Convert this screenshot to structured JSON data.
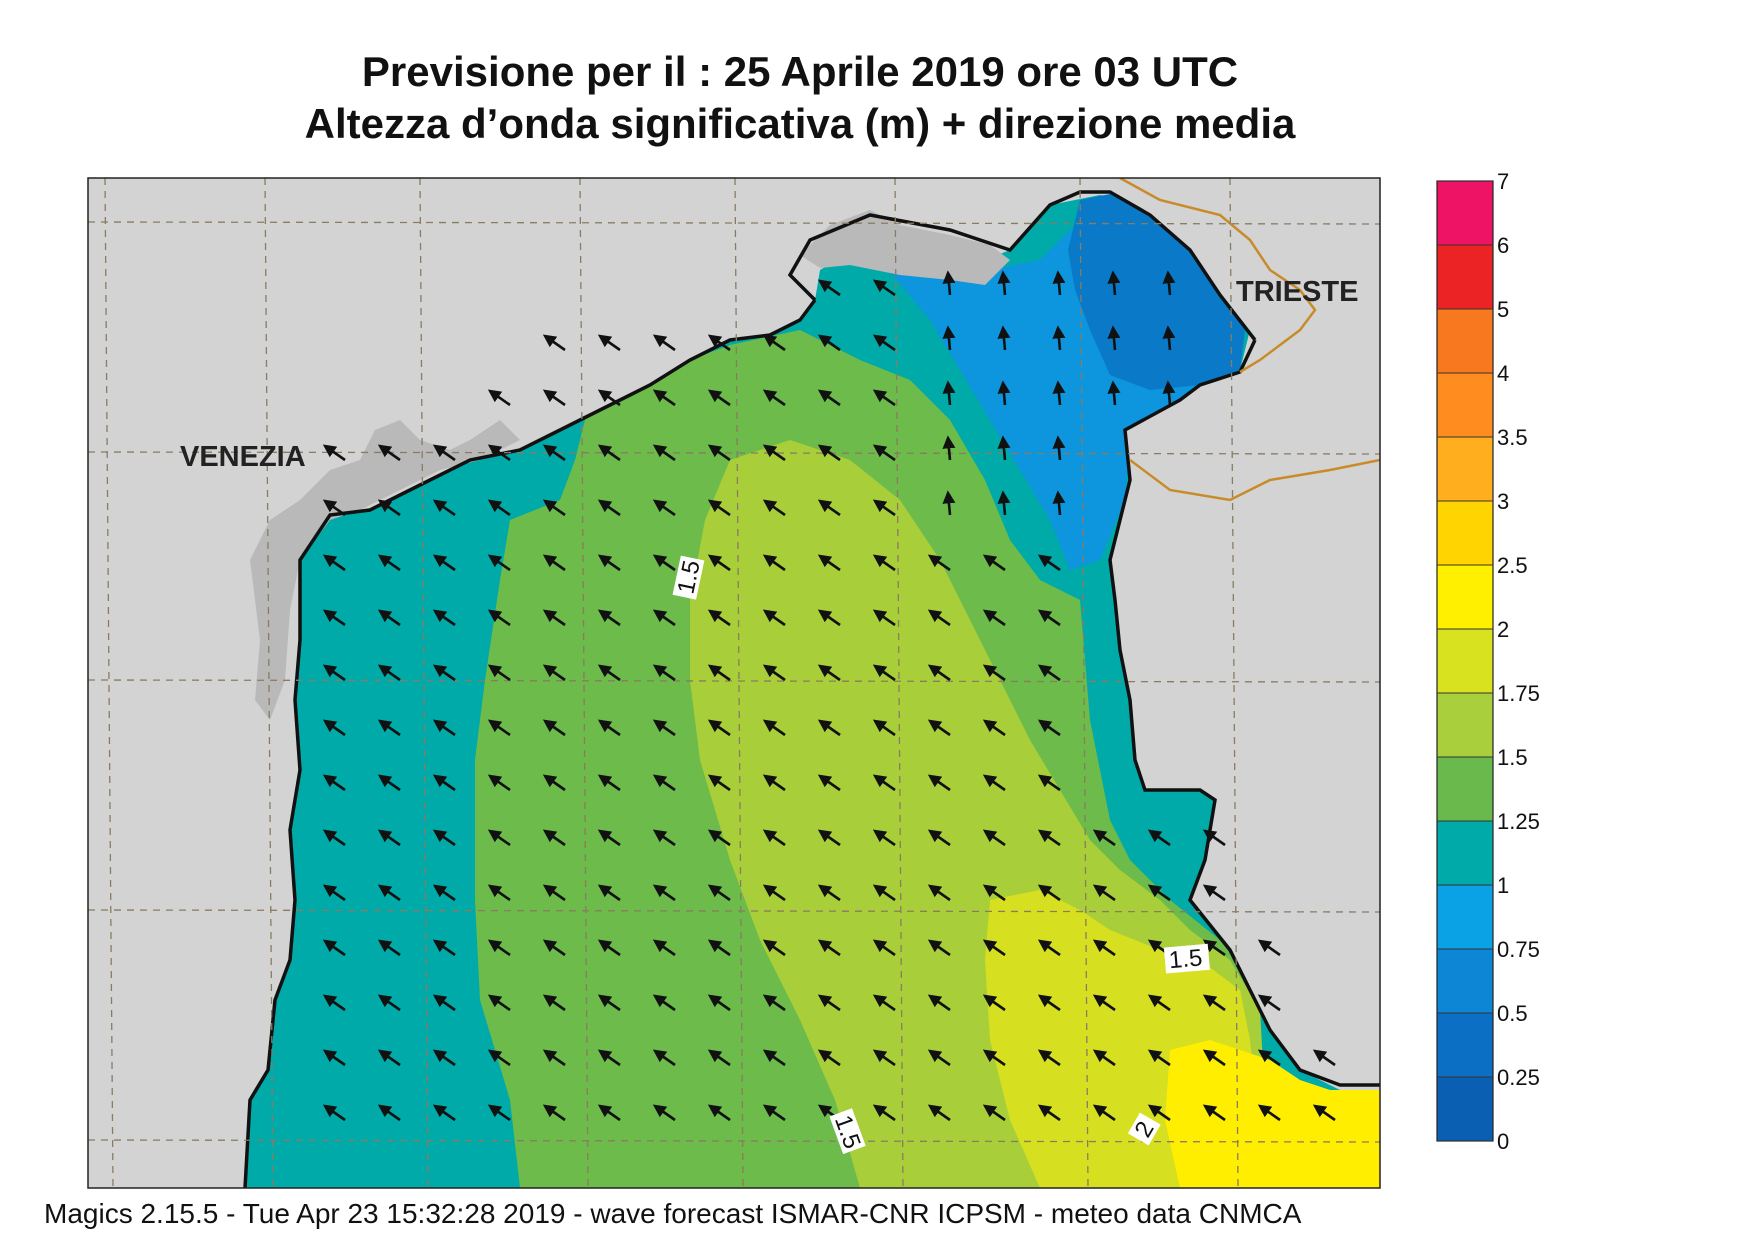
{
  "title": {
    "line1": "Previsione per il  :  25   Aprile  2019   ore 03 UTC",
    "line2": "Altezza d’onda significativa (m) + direzione media"
  },
  "labels": {
    "venezia": "VENEZIA",
    "trieste": "TRIESTE"
  },
  "contour_labels": [
    "1.5",
    "1.5",
    "1.5",
    "2"
  ],
  "colorbar": {
    "ticks": [
      "0",
      "0.25",
      "0.5",
      "0.75",
      "1",
      "1.25",
      "1.5",
      "1.75",
      "2",
      "2.5",
      "3",
      "3.5",
      "4",
      "5",
      "6",
      "7"
    ],
    "colors": [
      "#0b5fb3",
      "#0b6fc4",
      "#0d86d6",
      "#0aa2e4",
      "#00aaa8",
      "#69b94d",
      "#a9cf3c",
      "#d8e21f",
      "#fff000",
      "#ffd400",
      "#ffae1e",
      "#ff8c1f",
      "#f8781f",
      "#ec2324",
      "#ee1365"
    ],
    "sea_colors": {
      "very_low": "#0a7ac8",
      "low": "#0d95dd",
      "band_1_125": "#00aaa8",
      "band_125_15": "#6cbb4b",
      "band_15_175": "#a8cf3a",
      "band_175_2": "#d6e020",
      "band_2_25": "#ffee00"
    },
    "land_color": "#d3d3d3",
    "coast_grey": "#b9b9b9",
    "border_color": "#c88b2a"
  },
  "footer": "Magics 2.15.5 - Tue Apr 23 15:32:28 2019 - wave forecast  ISMAR-CNR  ICPSM - meteo data   CNMCA"
}
